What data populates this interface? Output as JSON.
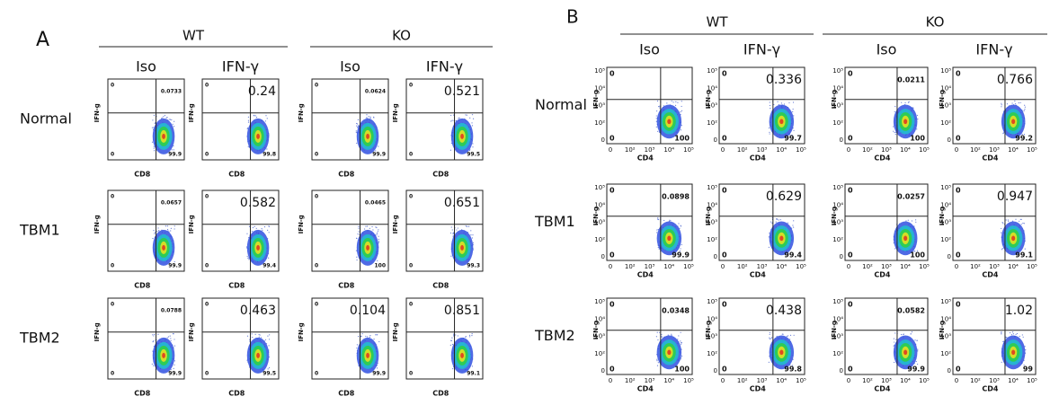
{
  "panels": [
    {
      "label": "A",
      "x_label": "CD8",
      "y_label": "IFN-g",
      "groups": [
        {
          "name": "WT",
          "conditions": [
            "Iso",
            "IFN-γ"
          ]
        },
        {
          "name": "KO",
          "conditions": [
            "Iso",
            "IFN-γ"
          ]
        }
      ],
      "rows": [
        {
          "label": "Normal",
          "plots": [
            {
              "ul": "0",
              "ur": "0.0733",
              "ll": "0",
              "lr": "99.9"
            },
            {
              "ul": "0",
              "ur": "0.24",
              "ll": "0",
              "lr": "99.8"
            },
            {
              "ul": "0",
              "ur": "0.0624",
              "ll": "0",
              "lr": "99.9"
            },
            {
              "ul": "0",
              "ur": "0.521",
              "ll": "0",
              "lr": "99.5"
            }
          ]
        },
        {
          "label": "TBM1",
          "plots": [
            {
              "ul": "0",
              "ur": "0.0657",
              "ll": "0",
              "lr": "99.9"
            },
            {
              "ul": "0",
              "ur": "0.582",
              "ll": "0",
              "lr": "99.4"
            },
            {
              "ul": "0",
              "ur": "0.0465",
              "ll": "0",
              "lr": "100"
            },
            {
              "ul": "0",
              "ur": "0.651",
              "ll": "0",
              "lr": "99.3"
            }
          ]
        },
        {
          "label": "TBM2",
          "plots": [
            {
              "ul": "0",
              "ur": "0.0788",
              "ll": "0",
              "lr": "99.9"
            },
            {
              "ul": "0",
              "ur": "0.463",
              "ll": "0",
              "lr": "99.5"
            },
            {
              "ul": "0",
              "ur": "0.104",
              "ll": "0",
              "lr": "99.9"
            },
            {
              "ul": "0",
              "ur": "0.851",
              "ll": "0",
              "lr": "99.1"
            }
          ]
        }
      ]
    },
    {
      "label": "B",
      "x_label": "CD4",
      "y_label": "IFN-g",
      "xticks": [
        "0",
        "10²",
        "10³",
        "10⁴",
        "10⁵"
      ],
      "yticks": [
        "0",
        "10²",
        "10³",
        "10⁴",
        "10⁵"
      ],
      "groups": [
        {
          "name": "WT",
          "conditions": [
            "Iso",
            "IFN-γ"
          ]
        },
        {
          "name": "KO",
          "conditions": [
            "Iso",
            "IFN-γ"
          ]
        }
      ],
      "rows": [
        {
          "label": "Normal",
          "plots": [
            {
              "ul": "0",
              "ll": "0",
              "lr": "100"
            },
            {
              "ul": "0",
              "ur": "0.336",
              "ll": "0",
              "lr": "99.7"
            },
            {
              "ul": "0",
              "ur": "0.0211",
              "ll": "0",
              "lr": "100"
            },
            {
              "ul": "0",
              "ur": "0.766",
              "ll": "0",
              "lr": "99.2"
            }
          ]
        },
        {
          "label": "TBM1",
          "plots": [
            {
              "ul": "0",
              "ur": "0.0898",
              "ll": "0",
              "lr": "99.9"
            },
            {
              "ul": "0",
              "ur": "0.629",
              "ll": "0",
              "lr": "99.4"
            },
            {
              "ul": "0",
              "ur": "0.0257",
              "ll": "0",
              "lr": "100"
            },
            {
              "ul": "0",
              "ur": "0.947",
              "ll": "0",
              "lr": "99.1"
            }
          ]
        },
        {
          "label": "TBM2",
          "plots": [
            {
              "ul": "0",
              "ur": "0.0348",
              "ll": "0",
              "lr": "100"
            },
            {
              "ul": "0",
              "ur": "0.438",
              "ll": "0",
              "lr": "99.8"
            },
            {
              "ul": "0",
              "ur": "0.0582",
              "ll": "0",
              "lr": "99.9"
            },
            {
              "ul": "0",
              "ur": "1.02",
              "ll": "0",
              "lr": "99"
            }
          ]
        }
      ]
    }
  ]
}
